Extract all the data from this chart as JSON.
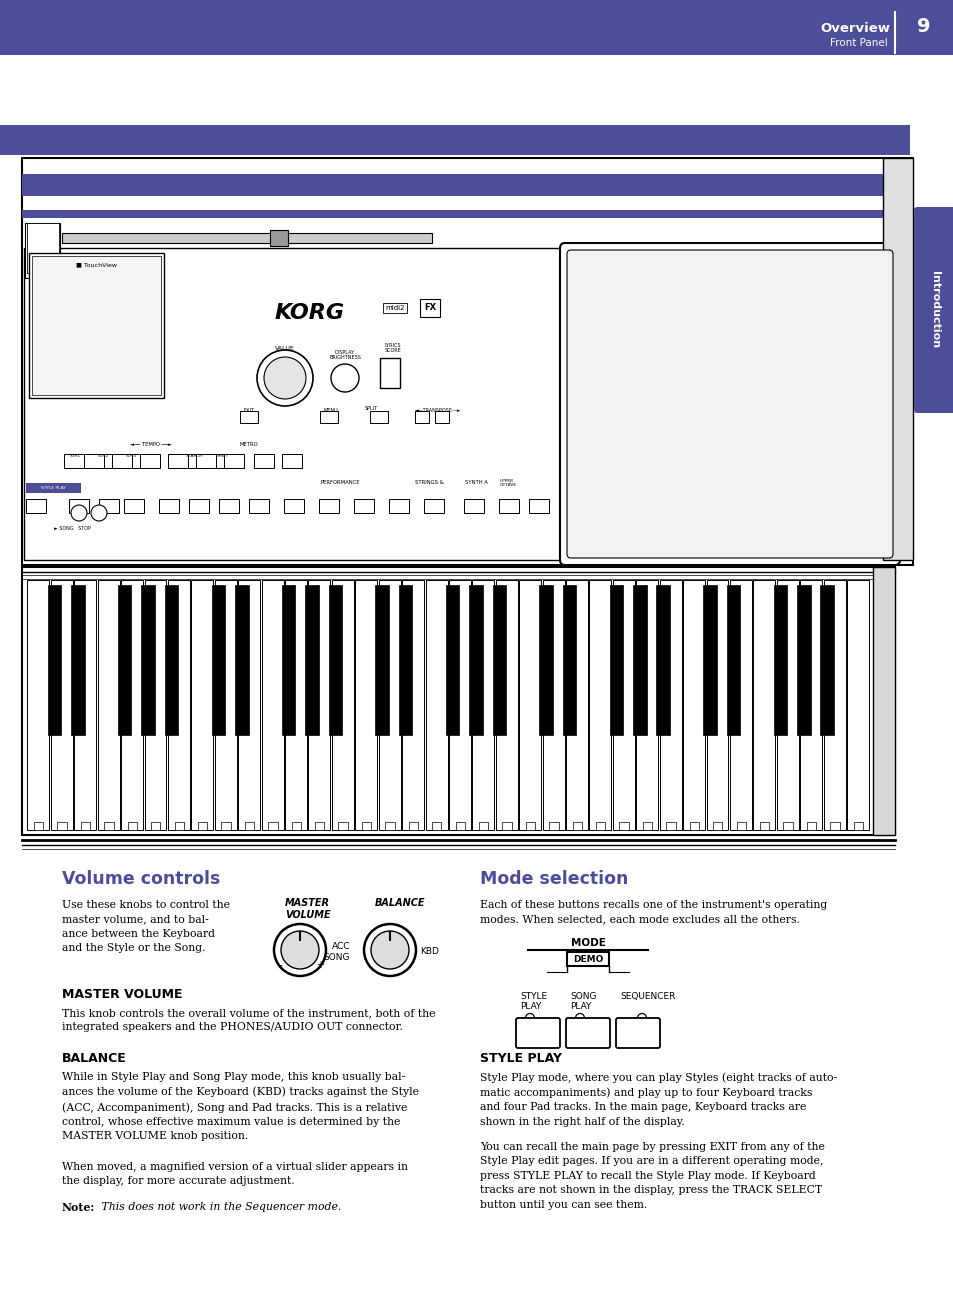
{
  "page_bg": "#ffffff",
  "header_bar_color": "#4d4d99",
  "header_text_overview": "Overview",
  "header_text_panel": "Front Panel",
  "header_page_num": "9",
  "side_tab_color": "#4d4d99",
  "side_tab_text": "Introduction",
  "section1_title": "Volume controls",
  "section1_title_color": "#4d4d99",
  "section2_title": "Mode selection",
  "section2_title_color": "#4d4d99",
  "master_volume_label": "MASTER VOLUME",
  "balance_label": "BALANCE",
  "style_play_label": "STYLE PLAY",
  "body_text_color": "#000000"
}
